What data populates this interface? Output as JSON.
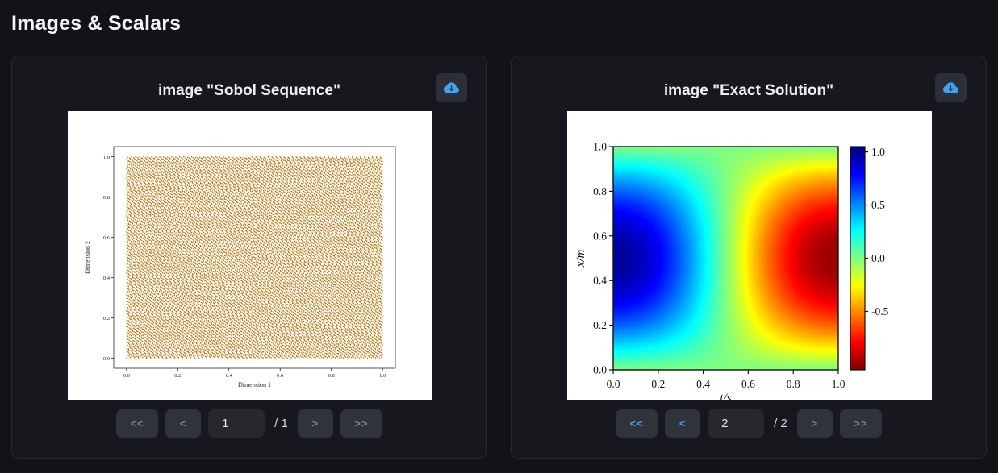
{
  "page": {
    "title": "Images & Scalars"
  },
  "colors": {
    "accent_blue": "#3fa2f6",
    "scatter_dot": "#bd7a16",
    "page_bg": "#121317",
    "card_bg": "#17181d"
  },
  "icons": {
    "download": "cloud-arrow-down"
  },
  "cards": [
    {
      "title": "image \"Sobol Sequence\"",
      "pager": {
        "first": "<<",
        "prev": "<",
        "next": ">",
        "last": ">>",
        "page": "1",
        "total_label": "/ 1",
        "first_enabled": false,
        "prev_enabled": false,
        "next_enabled": false,
        "last_enabled": false
      }
    },
    {
      "title": "image \"Exact Solution\"",
      "pager": {
        "first": "<<",
        "prev": "<",
        "next": ">",
        "last": ">>",
        "page": "2",
        "total_label": "/ 2",
        "first_enabled": true,
        "prev_enabled": true,
        "next_enabled": false,
        "last_enabled": false
      }
    }
  ],
  "chart_data": [
    {
      "type": "scatter",
      "title": "",
      "xlabel": "Dimension 1",
      "ylabel": "Dimension 2",
      "xticks": [
        0.0,
        0.2,
        0.4,
        0.6,
        0.8,
        1.0
      ],
      "yticks": [
        0.0,
        0.2,
        0.4,
        0.6,
        0.8,
        1.0
      ],
      "xlim": [
        -0.05,
        1.05
      ],
      "ylim": [
        -0.05,
        1.05
      ],
      "generator": "2d-sobol-sequence",
      "n_points": 16384,
      "marker": "square",
      "marker_size_px": 1.4,
      "marker_color": "#bd7a16",
      "grid": false,
      "legend": false
    },
    {
      "type": "heatmap",
      "title": "",
      "xlabel": "t/s",
      "ylabel": "x/m",
      "x_range": [
        0,
        1
      ],
      "y_range": [
        0,
        1
      ],
      "xticks": [
        0.0,
        0.2,
        0.4,
        0.6,
        0.8,
        1.0
      ],
      "yticks": [
        0.0,
        0.2,
        0.4,
        0.6,
        0.8,
        1.0
      ],
      "values_formula": "sin(pi*x)*cos(pi*t)",
      "colormap": "jet_r",
      "clim": [
        -1.05,
        1.05
      ],
      "colorbar_ticks": [
        1.0,
        0.5,
        0.0,
        -0.5
      ],
      "grid": false,
      "legend": false
    }
  ]
}
